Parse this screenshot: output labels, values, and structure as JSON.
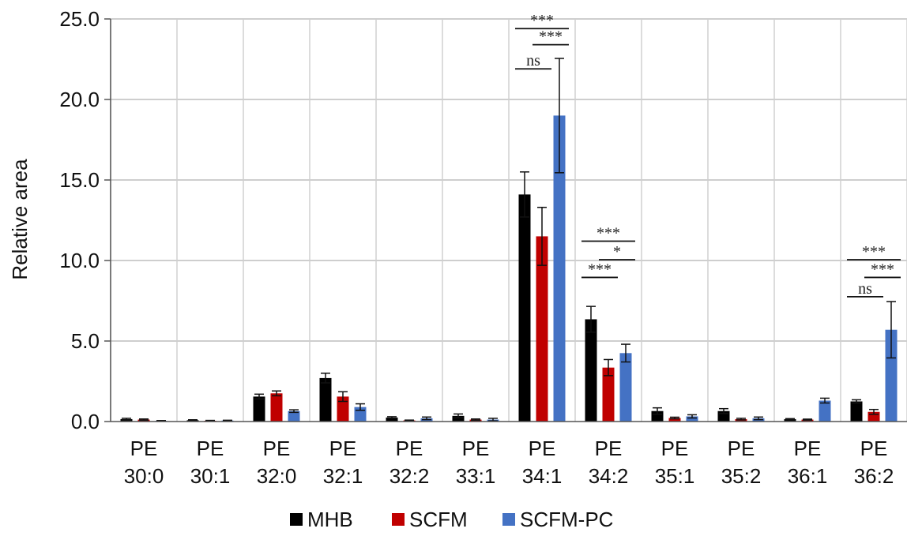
{
  "chart_data": {
    "type": "bar",
    "ylabel": "Relative area",
    "ylim": [
      0,
      25
    ],
    "yticks": [
      "0.0",
      "5.0",
      "10.0",
      "15.0",
      "20.0",
      "25.0"
    ],
    "grid": true,
    "legend_position": "bottom",
    "categories": [
      [
        "PE",
        "30:0"
      ],
      [
        "PE",
        "30:1"
      ],
      [
        "PE",
        "32:0"
      ],
      [
        "PE",
        "32:1"
      ],
      [
        "PE",
        "32:2"
      ],
      [
        "PE",
        "33:1"
      ],
      [
        "PE",
        "34:1"
      ],
      [
        "PE",
        "34:2"
      ],
      [
        "PE",
        "35:1"
      ],
      [
        "PE",
        "35:2"
      ],
      [
        "PE",
        "36:1"
      ],
      [
        "PE",
        "36:2"
      ]
    ],
    "series": [
      {
        "name": "MHB",
        "color": "#000000",
        "values": [
          0.15,
          0.08,
          1.55,
          2.7,
          0.25,
          0.35,
          14.1,
          6.35,
          0.65,
          0.65,
          0.15,
          1.25
        ],
        "errors": [
          0.05,
          0.03,
          0.15,
          0.3,
          0.05,
          0.12,
          1.4,
          0.8,
          0.2,
          0.15,
          0.03,
          0.1
        ]
      },
      {
        "name": "SCFM",
        "color": "#c00000",
        "values": [
          0.12,
          0.05,
          1.75,
          1.55,
          0.07,
          0.12,
          11.5,
          3.35,
          0.22,
          0.15,
          0.12,
          0.6
        ],
        "errors": [
          0.04,
          0.02,
          0.15,
          0.3,
          0.02,
          0.04,
          1.8,
          0.5,
          0.05,
          0.05,
          0.03,
          0.15
        ]
      },
      {
        "name": "SCFM-PC",
        "color": "#4472c4",
        "values": [
          0.04,
          0.06,
          0.65,
          0.9,
          0.2,
          0.12,
          19.0,
          4.25,
          0.32,
          0.2,
          1.3,
          5.7
        ],
        "errors": [
          0.02,
          0.02,
          0.08,
          0.2,
          0.08,
          0.08,
          3.55,
          0.55,
          0.1,
          0.08,
          0.15,
          1.75
        ]
      }
    ],
    "annotations": [
      {
        "category": 6,
        "from": 0,
        "to": 2,
        "y": 24.4,
        "label": "***"
      },
      {
        "category": 6,
        "from": 1,
        "to": 2,
        "y": 23.4,
        "label": "***"
      },
      {
        "category": 6,
        "from": 0,
        "to": 1,
        "y": 21.9,
        "label": "ns"
      },
      {
        "category": 7,
        "from": 0,
        "to": 2,
        "y": 11.2,
        "label": "***"
      },
      {
        "category": 7,
        "from": 1,
        "to": 2,
        "y": 10.05,
        "label": "*"
      },
      {
        "category": 7,
        "from": 0,
        "to": 1,
        "y": 8.95,
        "label": "***"
      },
      {
        "category": 11,
        "from": 0,
        "to": 2,
        "y": 10.05,
        "label": "***"
      },
      {
        "category": 11,
        "from": 1,
        "to": 2,
        "y": 8.95,
        "label": "***"
      },
      {
        "category": 11,
        "from": 0,
        "to": 1,
        "y": 7.75,
        "label": "ns"
      }
    ]
  }
}
